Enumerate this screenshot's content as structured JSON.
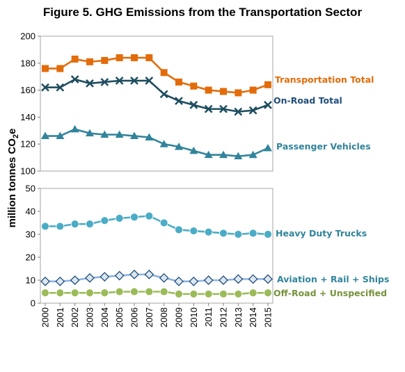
{
  "title": "Figure 5. GHG Emissions from the Transportation Sector",
  "chart_data": [
    {
      "type": "line",
      "ylabel": "million tonnes CO",
      "ylabel_sub": "2",
      "ylabel_tail": "e",
      "x": [
        2000,
        2001,
        2002,
        2003,
        2004,
        2005,
        2006,
        2007,
        2008,
        2009,
        2010,
        2011,
        2012,
        2013,
        2014,
        2015
      ],
      "ylim": [
        100,
        200
      ],
      "yticks": [
        100,
        120,
        140,
        160,
        180,
        200
      ],
      "grid": false,
      "series": [
        {
          "name": "Transportation Total",
          "color": "#E36C0A",
          "marker": "square",
          "values": [
            176,
            176,
            183,
            181,
            182,
            184,
            184,
            184,
            173,
            166,
            163,
            160,
            159,
            158,
            160,
            164
          ]
        },
        {
          "name": "On-Road Total",
          "color": "#1F4E5F",
          "marker": "x",
          "values": [
            162,
            162,
            168,
            165,
            166,
            167,
            167,
            167,
            157,
            152,
            149,
            146,
            146,
            144,
            145,
            149
          ]
        },
        {
          "name": "Passenger Vehicles",
          "color": "#31849B",
          "marker": "triangle",
          "values": [
            126,
            126,
            131,
            128,
            127,
            127,
            126,
            125,
            120,
            118,
            115,
            112,
            112,
            111,
            112,
            117
          ]
        }
      ]
    },
    {
      "type": "line",
      "x": [
        2000,
        2001,
        2002,
        2003,
        2004,
        2005,
        2006,
        2007,
        2008,
        2009,
        2010,
        2011,
        2012,
        2013,
        2014,
        2015
      ],
      "xtick_labels": [
        "2000",
        "2001",
        "2002",
        "2003",
        "2004",
        "2005",
        "2006",
        "2007",
        "2008",
        "2009",
        "2010",
        "2011",
        "2012",
        "2013",
        "2014",
        "2015"
      ],
      "ylim": [
        0,
        50
      ],
      "yticks": [
        0,
        10,
        20,
        30,
        40,
        50
      ],
      "grid": false,
      "series": [
        {
          "name": "Heavy Duty Trucks",
          "color": "#4BACC6",
          "marker": "circle",
          "values": [
            33.5,
            33.5,
            34.5,
            34.5,
            36,
            37,
            37.5,
            38,
            35,
            32,
            31.5,
            31,
            30.5,
            30,
            30.5,
            30
          ]
        },
        {
          "name": "Aviation + Rail + Ships",
          "color": "#8DB3E2",
          "marker": "diamond",
          "values": [
            9.5,
            9.5,
            10,
            11,
            11.5,
            12,
            12.5,
            12.5,
            11,
            9.5,
            9.5,
            10,
            10,
            10.5,
            10.5,
            10.5
          ]
        },
        {
          "name": "Off-Road + Unspecified",
          "color": "#9BBB59",
          "marker": "circle",
          "values": [
            4.5,
            4.5,
            4.5,
            4.5,
            4.5,
            5,
            5,
            5,
            5,
            4,
            4,
            4,
            4,
            4,
            4.5,
            4.5
          ]
        }
      ]
    }
  ]
}
